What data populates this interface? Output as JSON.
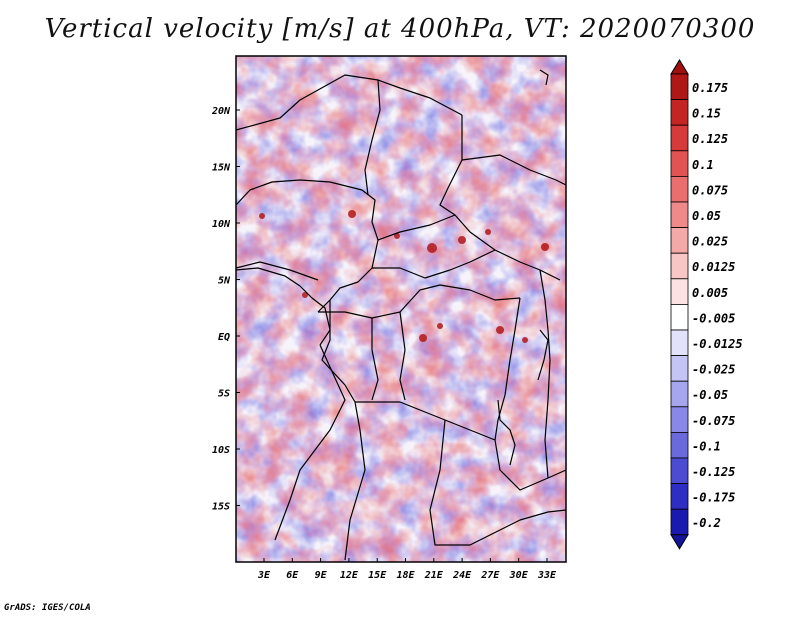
{
  "title": "Vertical velocity [m/s] at 400hPa, VT: 2020070300",
  "credit": "GrADS: IGES/COLA",
  "map": {
    "lat_labels": [
      "20N",
      "15N",
      "10N",
      "5N",
      "EQ",
      "5S",
      "10S",
      "15S"
    ],
    "lon_labels": [
      "3E",
      "6E",
      "9E",
      "12E",
      "15E",
      "18E",
      "21E",
      "24E",
      "27E",
      "30E",
      "33E"
    ],
    "field_variable": "vertical velocity",
    "field_units": "m/s",
    "pressure_level": "400hPa",
    "valid_time": "2020070300"
  },
  "legend": {
    "entries": [
      {
        "label": "0.175",
        "color": "#b01818"
      },
      {
        "label": "0.15",
        "color": "#c42424"
      },
      {
        "label": "0.125",
        "color": "#d63a3a"
      },
      {
        "label": "0.1",
        "color": "#e25454"
      },
      {
        "label": "0.075",
        "color": "#ea6e6e"
      },
      {
        "label": "0.05",
        "color": "#f08a8a"
      },
      {
        "label": "0.025",
        "color": "#f5a8a8"
      },
      {
        "label": "0.0125",
        "color": "#f9c6c6"
      },
      {
        "label": "0.005",
        "color": "#fce2e2"
      },
      {
        "label": "-0.005",
        "color": "#ffffff"
      },
      {
        "label": "-0.0125",
        "color": "#e2e2fb"
      },
      {
        "label": "-0.025",
        "color": "#c4c4f5"
      },
      {
        "label": "-0.05",
        "color": "#a6a6ee"
      },
      {
        "label": "-0.075",
        "color": "#8888e6"
      },
      {
        "label": "-0.1",
        "color": "#6a6add"
      },
      {
        "label": "-0.125",
        "color": "#4c4cd2"
      },
      {
        "label": "-0.175",
        "color": "#2e2ec4"
      },
      {
        "label": "-0.2",
        "color": "#1a1ab0"
      }
    ],
    "top_color": "#a01010",
    "bottom_color": "#14149a"
  }
}
